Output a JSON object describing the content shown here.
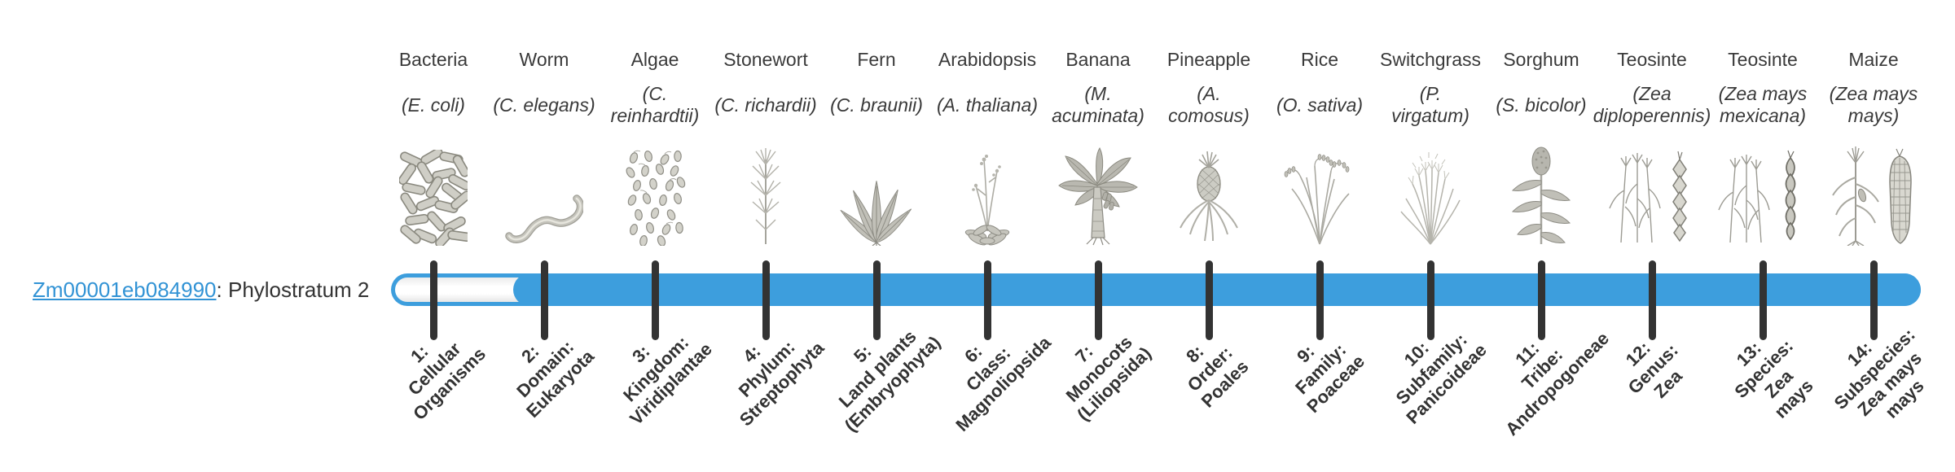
{
  "page": {
    "background": "#ffffff"
  },
  "gene": {
    "id": "Zm00001eb084990",
    "annotation": ": Phylostratum 2",
    "phylostratum": 2
  },
  "colors": {
    "bar_blue": "#3d9edd",
    "link_blue": "#3293d5",
    "tick_dark": "#333333",
    "text": "#333333"
  },
  "strata": [
    {
      "n": 1,
      "organism": "Bacteria",
      "species": "(E. coli)",
      "tick_label": "1:\nCellular\nOrganisms",
      "icon": "bacteria-icon"
    },
    {
      "n": 2,
      "organism": "Worm",
      "species": "(C. elegans)",
      "tick_label": "2:\nDomain:\nEukaryota",
      "icon": "worm-icon"
    },
    {
      "n": 3,
      "organism": "Algae",
      "species": "(C.\nreinhardtii)",
      "tick_label": "3:\nKingdom:\nViridiplantae",
      "icon": "algae-icon"
    },
    {
      "n": 4,
      "organism": "Stonewort",
      "species": "(C. richardii)",
      "tick_label": "4:\nPhylum:\nStreptophyta",
      "icon": "stonewort-icon"
    },
    {
      "n": 5,
      "organism": "Fern",
      "species": "(C. braunii)",
      "tick_label": "5:\nLand plants\n(Embryophyta)",
      "icon": "fern-icon"
    },
    {
      "n": 6,
      "organism": "Arabidopsis",
      "species": "(A. thaliana)",
      "tick_label": "6:\nClass:\nMagnoliopsida",
      "icon": "arabidopsis-icon"
    },
    {
      "n": 7,
      "organism": "Banana",
      "species": "(M.\nacuminata)",
      "tick_label": "7:\nMonocots\n(Liliopsida)",
      "icon": "banana-icon"
    },
    {
      "n": 8,
      "organism": "Pineapple",
      "species": "(A.\ncomosus)",
      "tick_label": "8:\nOrder:\nPoales",
      "icon": "pineapple-icon"
    },
    {
      "n": 9,
      "organism": "Rice",
      "species": "(O. sativa)",
      "tick_label": "9:\nFamily:\nPoaceae",
      "icon": "rice-icon"
    },
    {
      "n": 10,
      "organism": "Switchgrass",
      "species": "(P.\nvirgatum)",
      "tick_label": "10:\nSubfamily:\nPanicoideae",
      "icon": "switchgrass-icon"
    },
    {
      "n": 11,
      "organism": "Sorghum",
      "species": "(S. bicolor)",
      "tick_label": "11:\nTribe:\nAndropogoneae",
      "icon": "sorghum-icon"
    },
    {
      "n": 12,
      "organism": "Teosinte",
      "species": "(Zea\ndiploperennis)",
      "tick_label": "12:\nGenus:\nZea",
      "icon": "teosinte-diploperennis-icon"
    },
    {
      "n": 13,
      "organism": "Teosinte",
      "species": "(Zea mays\nmexicana)",
      "tick_label": "13:\nSpecies:\nZea\nmays",
      "icon": "teosinte-mexicana-icon"
    },
    {
      "n": 14,
      "organism": "Maize",
      "species": "(Zea mays\nmays)",
      "tick_label": "14:\nSubspecies:\nZea mays\nmays",
      "icon": "maize-icon"
    }
  ],
  "layout_note": "phylostratum bar filled from stratum 2 onward; strata 1 region shown as unfilled white track"
}
